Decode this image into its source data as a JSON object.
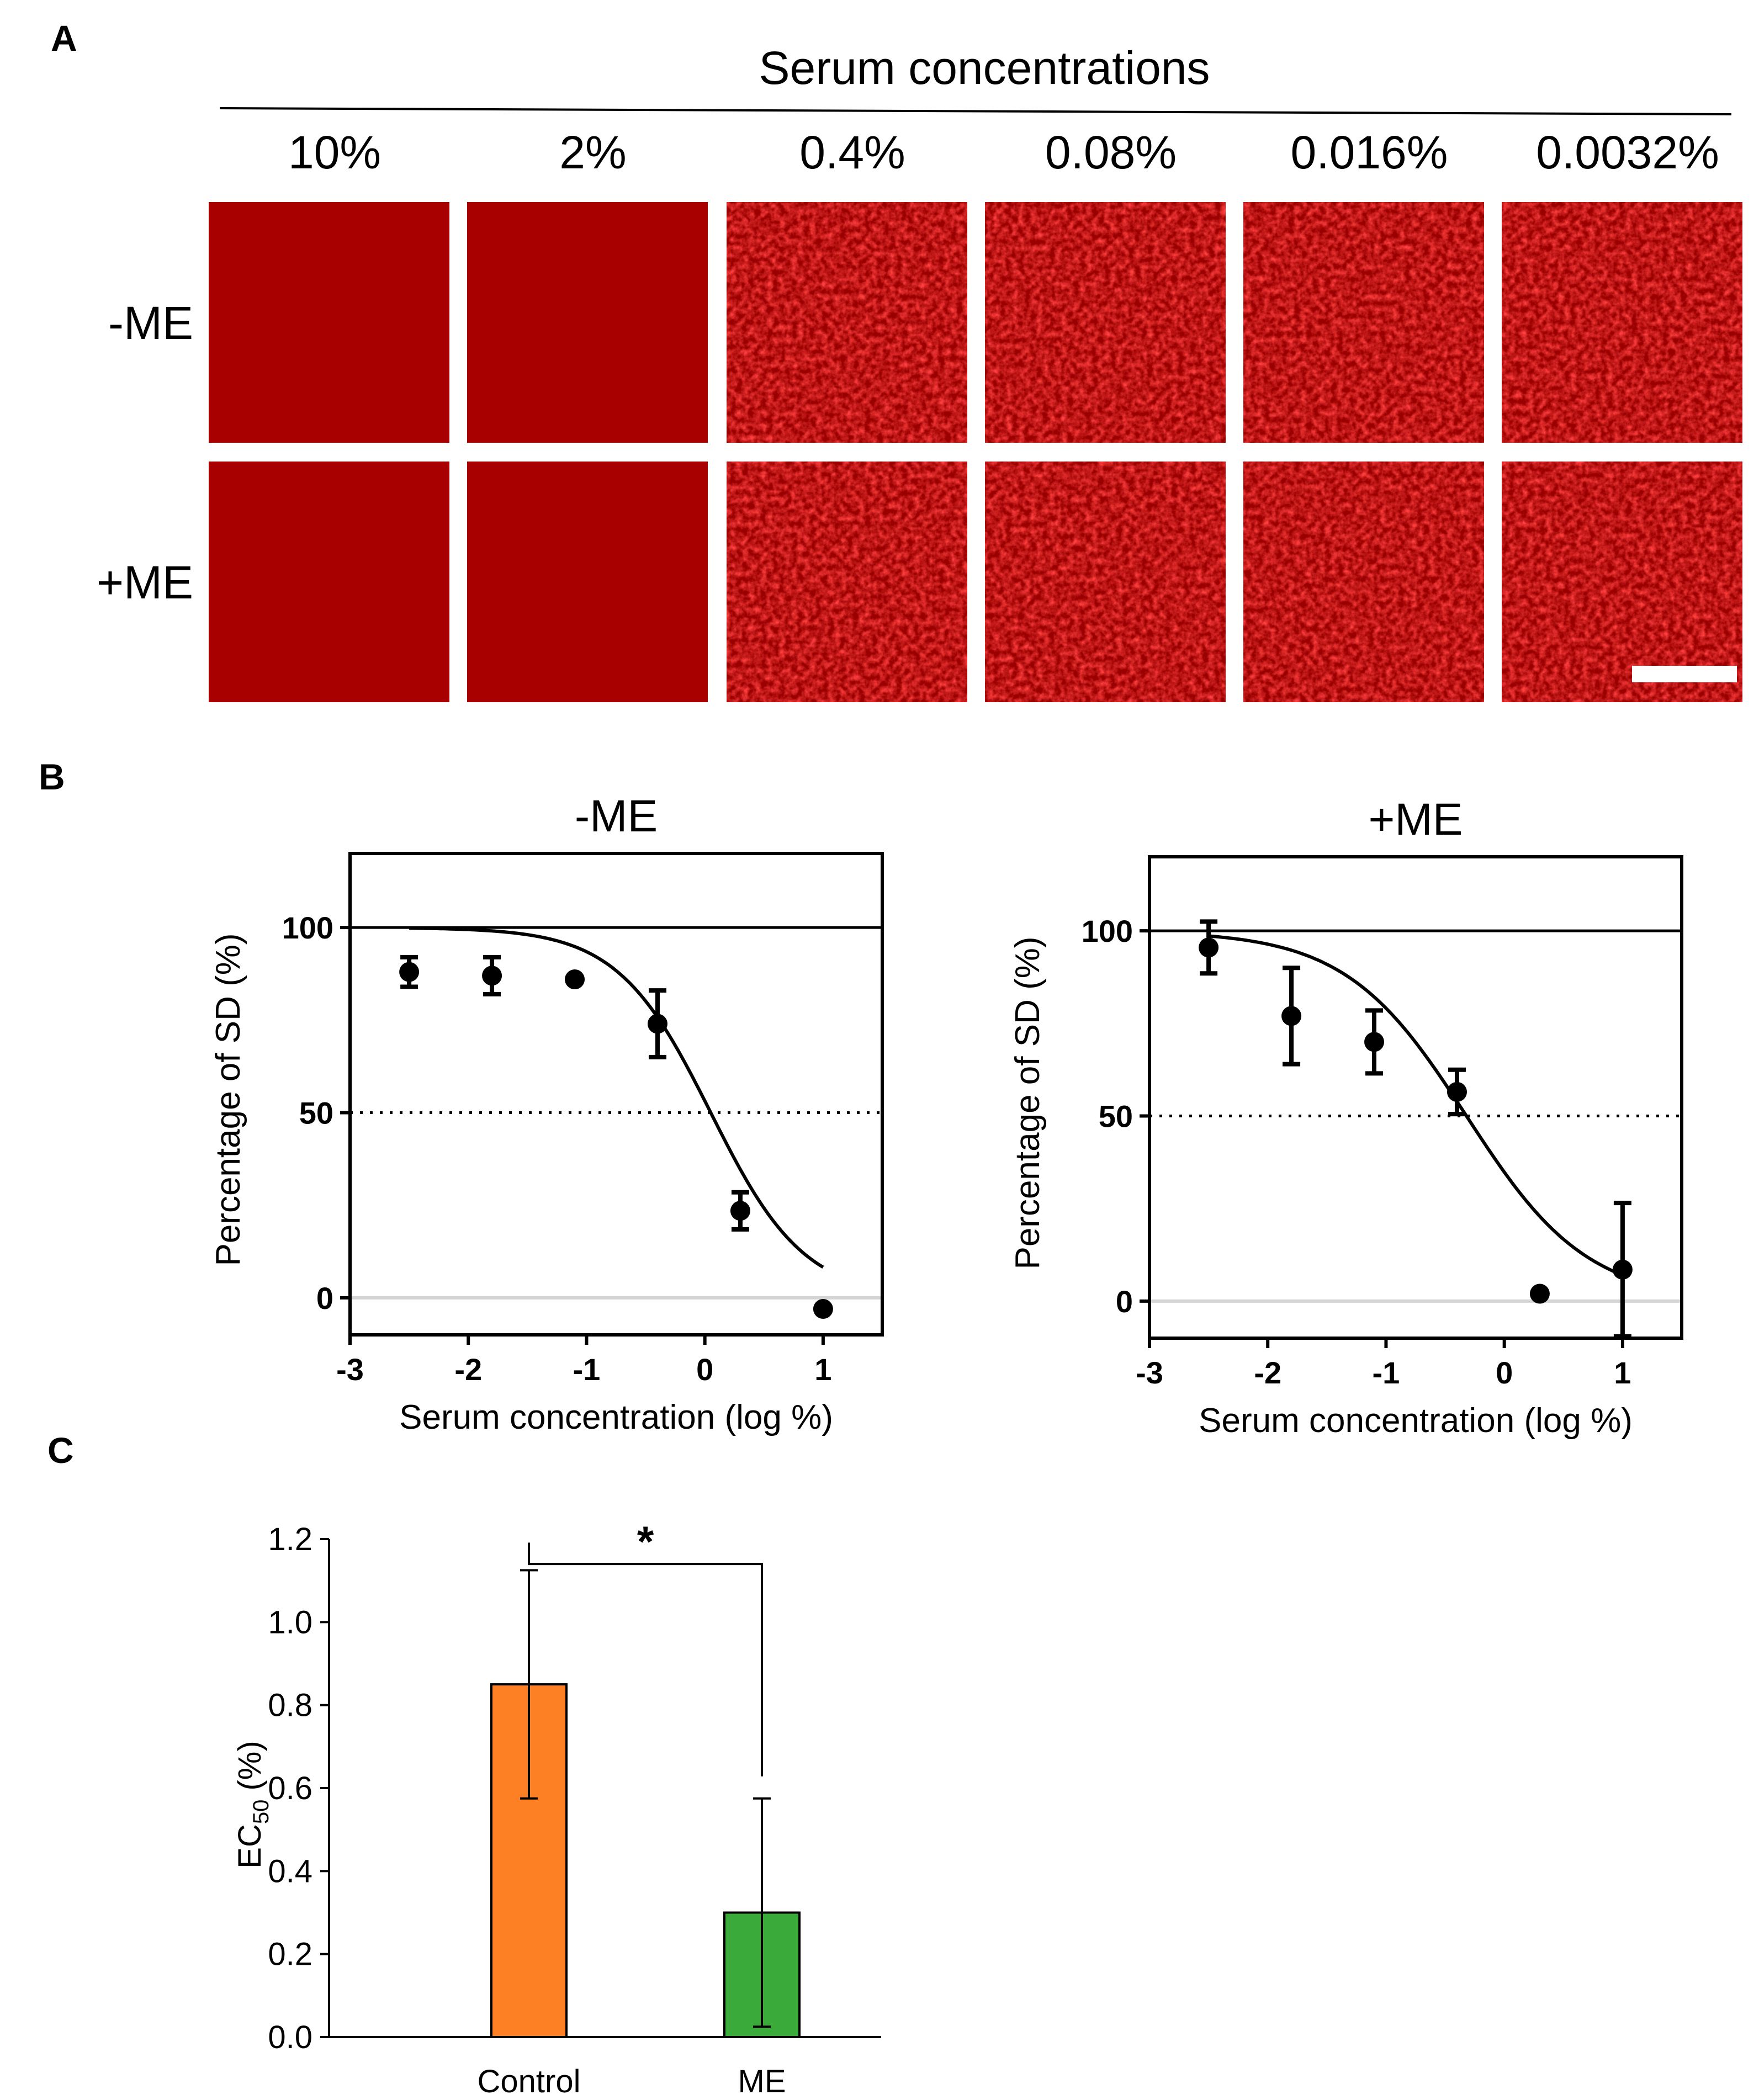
{
  "panels": {
    "a": "A",
    "b": "B",
    "c": "C"
  },
  "panel_a": {
    "header": "Serum concentrations",
    "columns": [
      "10%",
      "2%",
      "0.4%",
      "0.08%",
      "0.016%",
      "0.0032%"
    ],
    "rows": [
      "-ME",
      "+ME"
    ],
    "image_style": [
      "flat",
      "flat",
      "textured",
      "textured",
      "textured",
      "textured"
    ],
    "colors": {
      "flat": "#a80000",
      "textured_base": "#9a0000",
      "textured_bright": "#e81010",
      "scale_bar": "#ffffff"
    }
  },
  "chart_data": [
    {
      "type": "scatter",
      "title": "-ME",
      "xlabel": "Serum concentration (log %)",
      "ylabel": "Percentage of SD (%)",
      "xlim": [
        -3,
        1.5
      ],
      "ylim": [
        -10,
        120
      ],
      "xticks": [
        "-3",
        "-2",
        "-1",
        "0",
        "1"
      ],
      "yticks": [
        "0",
        "50",
        "100"
      ],
      "points": [
        {
          "x": -2.5,
          "y": 88,
          "err": 4
        },
        {
          "x": -1.8,
          "y": 87,
          "err": 5
        },
        {
          "x": -1.1,
          "y": 86,
          "err": 0
        },
        {
          "x": -0.4,
          "y": 74,
          "err": 9
        },
        {
          "x": 0.3,
          "y": 23.5,
          "err": 5
        },
        {
          "x": 1.0,
          "y": -3,
          "err": 0
        }
      ],
      "fit": {
        "log_ec50": 0.05,
        "hill_slope": 1.1,
        "top": 100,
        "bottom": 0,
        "x_range": [
          -2.5,
          1.0
        ]
      },
      "reference_lines": {
        "top": 100,
        "half": 50,
        "zero": 0
      },
      "grid": false
    },
    {
      "type": "scatter",
      "title": "+ME",
      "xlabel": "Serum concentration (log %)",
      "ylabel": "Percentage of SD (%)",
      "xlim": [
        -3,
        1.5
      ],
      "ylim": [
        -10,
        120
      ],
      "xticks": [
        "-3",
        "-2",
        "-1",
        "0",
        "1"
      ],
      "yticks": [
        "0",
        "50",
        "100"
      ],
      "points": [
        {
          "x": -2.5,
          "y": 95.5,
          "err": 7
        },
        {
          "x": -1.8,
          "y": 77,
          "err": 13
        },
        {
          "x": -1.1,
          "y": 70,
          "err": 8.5
        },
        {
          "x": -0.4,
          "y": 56.5,
          "err": 6
        },
        {
          "x": 0.3,
          "y": 2,
          "err": 0
        },
        {
          "x": 1.0,
          "y": 8.5,
          "err": 18
        }
      ],
      "fit": {
        "log_ec50": -0.32,
        "hill_slope": 0.85,
        "top": 100,
        "bottom": 0,
        "x_range": [
          -2.5,
          1.0
        ]
      },
      "reference_lines": {
        "top": 100,
        "half": 50,
        "zero": 0
      },
      "grid": false
    },
    {
      "type": "bar",
      "ylabel_main": "EC",
      "ylabel_sub": "50",
      "ylabel_unit": " (%)",
      "categories": [
        "Control",
        "ME"
      ],
      "values": [
        0.85,
        0.3
      ],
      "errors": [
        0.275,
        0.275
      ],
      "colors": [
        "#fd8124",
        "#3aaa3a"
      ],
      "ylim": [
        0,
        1.2
      ],
      "yticks": [
        "0.0",
        "0.2",
        "0.4",
        "0.6",
        "0.8",
        "1.0",
        "1.2"
      ],
      "significance": "*",
      "grid": false
    }
  ]
}
